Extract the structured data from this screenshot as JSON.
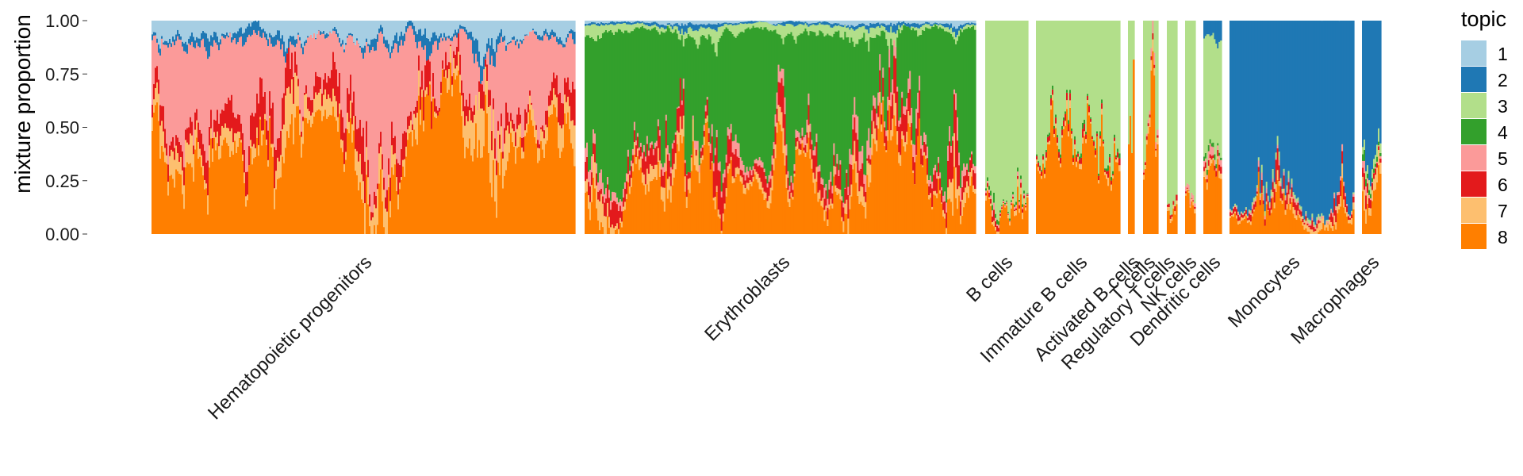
{
  "chart_data": {
    "type": "area",
    "subtype": "stacked-structure-plot",
    "ylabel": "mixture proportion",
    "ylim": [
      0,
      1
    ],
    "yticks": [
      "0.00",
      "0.25",
      "0.50",
      "0.75",
      "1.00"
    ],
    "legend": {
      "title": "topic",
      "placement": "right",
      "items": [
        {
          "label": "1",
          "color": "#a6cee3"
        },
        {
          "label": "2",
          "color": "#1f78b4"
        },
        {
          "label": "3",
          "color": "#b2df8a"
        },
        {
          "label": "4",
          "color": "#33a02c"
        },
        {
          "label": "5",
          "color": "#fb9a99"
        },
        {
          "label": "6",
          "color": "#e31a1c"
        },
        {
          "label": "7",
          "color": "#fdbf6f"
        },
        {
          "label": "8",
          "color": "#ff7f00"
        }
      ]
    },
    "groups": [
      {
        "name": "Hematopoietic progenitors",
        "avg": {
          "1": 0.06,
          "2": 0.03,
          "3": 0.0,
          "4": 0.0,
          "5": 0.33,
          "6": 0.08,
          "7": 0.08,
          "8": 0.42
        }
      },
      {
        "name": "Erythroblasts",
        "avg": {
          "1": 0.01,
          "2": 0.01,
          "3": 0.03,
          "4": 0.55,
          "5": 0.04,
          "6": 0.07,
          "7": 0.05,
          "8": 0.24
        }
      },
      {
        "name": "B cells",
        "avg": {
          "1": 0.0,
          "2": 0.0,
          "3": 0.72,
          "4": 0.01,
          "5": 0.01,
          "6": 0.01,
          "7": 0.02,
          "8": 0.23
        }
      },
      {
        "name": "Immature B cells",
        "avg": {
          "1": 0.0,
          "2": 0.0,
          "3": 0.61,
          "4": 0.01,
          "5": 0.0,
          "6": 0.02,
          "7": 0.02,
          "8": 0.34
        }
      },
      {
        "name": "Activated B cells",
        "avg": {
          "1": 0.0,
          "2": 0.0,
          "3": 0.55,
          "4": 0.0,
          "5": 0.0,
          "6": 0.0,
          "7": 0.0,
          "8": 0.45
        }
      },
      {
        "name": "T cells",
        "avg": {
          "1": 0.0,
          "2": 0.0,
          "3": 0.74,
          "4": 0.0,
          "5": 0.02,
          "6": 0.01,
          "7": 0.02,
          "8": 0.21
        }
      },
      {
        "name": "Regulatory T cells",
        "avg": {
          "1": 0.0,
          "2": 0.0,
          "3": 0.76,
          "4": 0.0,
          "5": 0.0,
          "6": 0.02,
          "7": 0.02,
          "8": 0.2
        }
      },
      {
        "name": "NK cells",
        "avg": {
          "1": 0.0,
          "2": 0.0,
          "3": 0.72,
          "4": 0.0,
          "5": 0.02,
          "6": 0.01,
          "7": 0.02,
          "8": 0.23
        }
      },
      {
        "name": "Dendritic cells",
        "avg": {
          "1": 0.0,
          "2": 0.1,
          "3": 0.5,
          "4": 0.02,
          "5": 0.04,
          "6": 0.02,
          "7": 0.05,
          "8": 0.27
        }
      },
      {
        "name": "Monocytes",
        "avg": {
          "1": 0.0,
          "2": 0.83,
          "3": 0.01,
          "4": 0.0,
          "5": 0.01,
          "6": 0.04,
          "7": 0.02,
          "8": 0.09
        }
      },
      {
        "name": "Macrophages",
        "avg": {
          "1": 0.0,
          "2": 0.57,
          "3": 0.04,
          "4": 0.02,
          "5": 0.02,
          "6": 0.03,
          "7": 0.05,
          "8": 0.27
        }
      }
    ]
  }
}
